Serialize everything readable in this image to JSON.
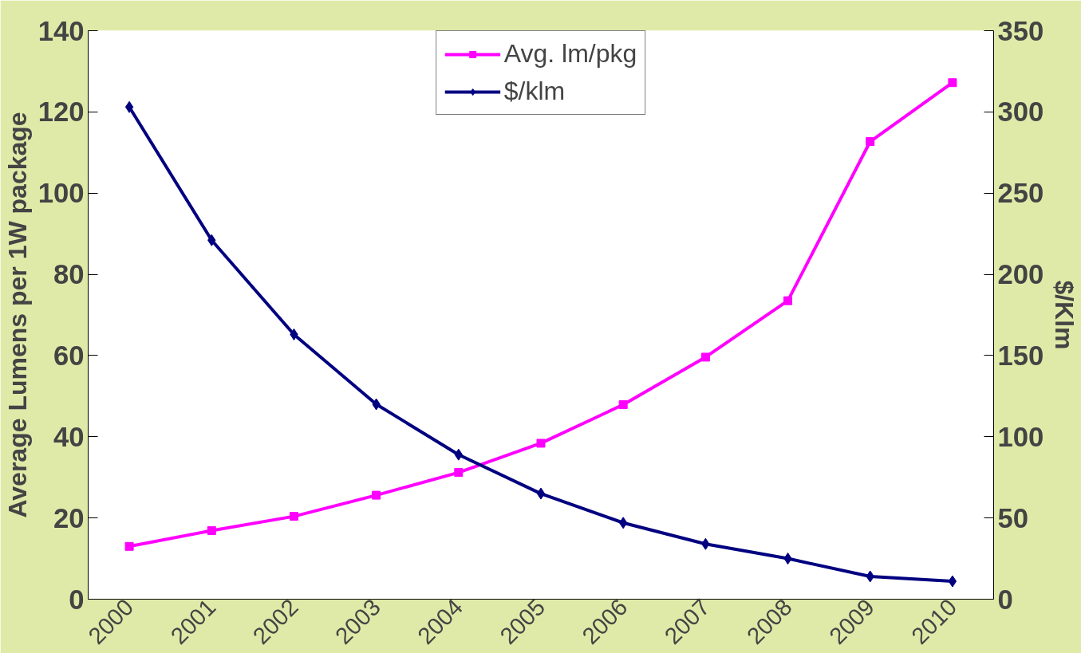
{
  "chart_data": {
    "type": "line",
    "categories": [
      "2000",
      "2001",
      "2002",
      "2003",
      "2004",
      "2005",
      "2006",
      "2007",
      "2008",
      "2009",
      "2010"
    ],
    "ylabel": "Average Lumens per 1W package",
    "y2label": "$/Klm",
    "ylim": [
      0,
      140
    ],
    "yticks": [
      0,
      20,
      40,
      60,
      80,
      100,
      120,
      140
    ],
    "y2lim": [
      0,
      350
    ],
    "y2ticks": [
      0,
      50,
      100,
      150,
      200,
      250,
      300,
      350
    ],
    "grid": false,
    "legend": "top left",
    "series": [
      {
        "name": "Avg. lm/pkg",
        "color": "#ff00ff",
        "marker": "square",
        "values": [
          13.0,
          16.9,
          20.4,
          25.6,
          31.2,
          38.4,
          47.9,
          59.6,
          73.5,
          112.7,
          127.2
        ]
      },
      {
        "name": "$/klm",
        "color": "#000080",
        "marker": "diamond",
        "axis": "y2",
        "values": [
          303,
          221,
          163,
          120,
          89,
          65,
          47,
          34,
          25,
          14,
          11
        ]
      }
    ]
  }
}
